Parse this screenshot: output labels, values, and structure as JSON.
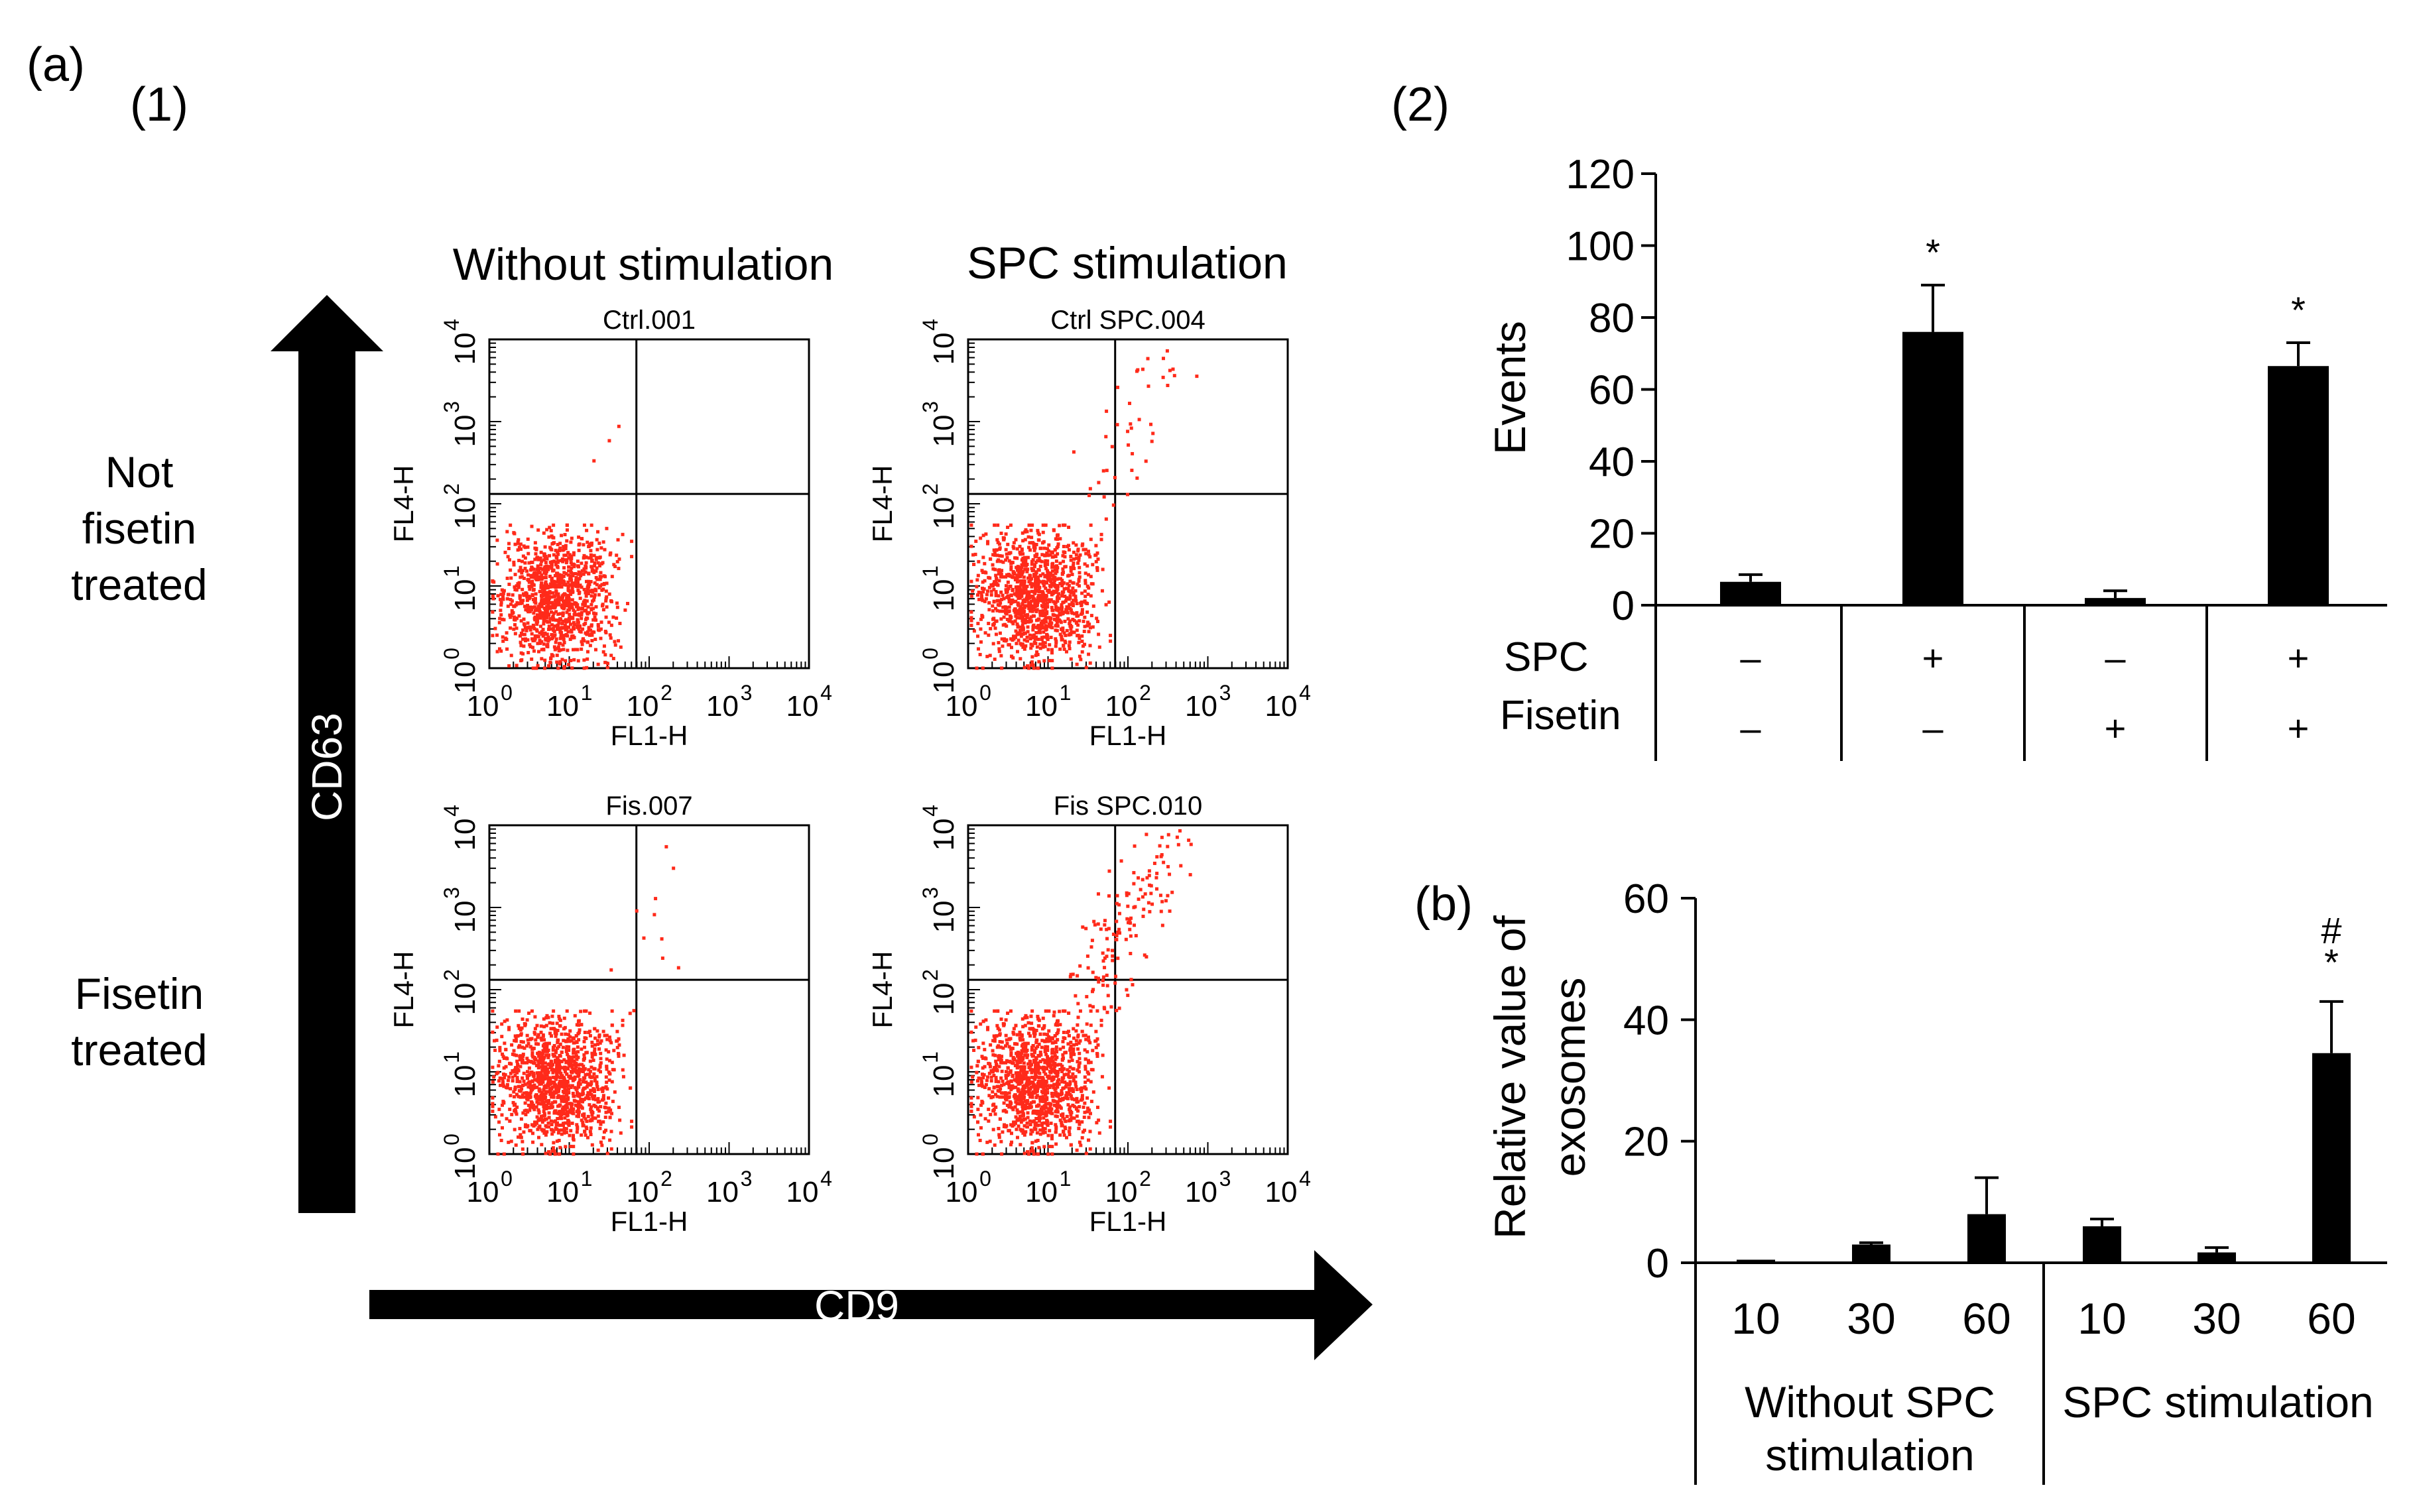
{
  "panel_labels": {
    "a": "(a)",
    "a1": "(1)",
    "a2": "(2)",
    "b": "(b)"
  },
  "flow": {
    "col_headers": [
      "Without stimulation",
      "SPC stimulation"
    ],
    "row_labels": [
      [
        "Not",
        "fisetin",
        "treated"
      ],
      [
        "Fisetin",
        "treated"
      ]
    ],
    "y_arrow_label": "CD63",
    "x_arrow_label": "CD9",
    "x_axis_label": "FL1-H",
    "y_axis_label": "FL4-H",
    "tick_base": "10",
    "tick_exps": [
      "0",
      "1",
      "2",
      "3",
      "4"
    ],
    "point_color": "#ff2a1a",
    "plots": [
      {
        "title": "Ctrl.001"
      },
      {
        "title": "Ctrl SPC.004"
      },
      {
        "title": "Fis.007"
      },
      {
        "title": "Fis SPC.010"
      }
    ]
  },
  "chart_data": [
    {
      "type": "bar",
      "title": "(2)",
      "ylabel": "Events",
      "ylim": [
        0,
        120
      ],
      "yticks": [
        "0",
        "20",
        "40",
        "60",
        "80",
        "100",
        "120"
      ],
      "conditions": {
        "row_labels": [
          "SPC",
          "Fisetin"
        ],
        "SPC": [
          "–",
          "+",
          "–",
          "+"
        ],
        "Fisetin": [
          "–",
          "–",
          "+",
          "+"
        ]
      },
      "values": [
        6.5,
        76,
        2,
        66.5
      ],
      "errors": [
        2,
        13,
        2,
        6.5
      ],
      "significance": [
        "",
        "*",
        "",
        "*"
      ]
    },
    {
      "type": "bar",
      "title": "(b)",
      "ylabel": [
        "Relative value of",
        "exosomes"
      ],
      "ylim": [
        0,
        60
      ],
      "yticks": [
        "0",
        "20",
        "40",
        "60"
      ],
      "categories": [
        "10",
        "30",
        "60",
        "10",
        "30",
        "60"
      ],
      "groups": [
        [
          "Without SPC",
          "stimulation"
        ],
        [
          "SPC stimulation"
        ]
      ],
      "values": [
        0.5,
        3,
        8,
        6,
        1.7,
        34.5
      ],
      "errors": [
        0,
        0.3,
        6,
        1.2,
        0.8,
        8.5
      ],
      "significance": [
        [
          "",
          ""
        ],
        [
          "",
          ""
        ],
        [
          "",
          ""
        ],
        [
          "",
          ""
        ],
        [
          "",
          ""
        ],
        [
          "*",
          "#"
        ]
      ]
    }
  ]
}
